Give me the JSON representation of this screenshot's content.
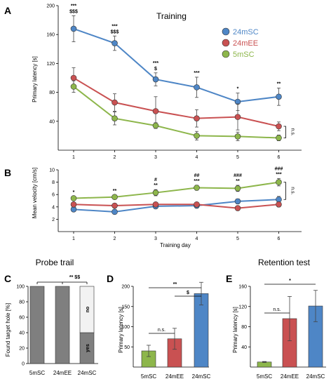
{
  "chart_data": [
    {
      "id": "A",
      "type": "line",
      "panel_label": "A",
      "title": "Training",
      "xlabel": "",
      "ylabel": "Primary latency [s]",
      "x": [
        1,
        2,
        3,
        4,
        5,
        6
      ],
      "x_ticks": [
        "1",
        "2",
        "3",
        "4",
        "5",
        "6"
      ],
      "ylim": [
        0,
        200
      ],
      "y_ticks": [
        "40",
        "80",
        "120",
        "160",
        "200"
      ],
      "series": [
        {
          "name": "24mSC",
          "color": "#4e86c6",
          "values": [
            168,
            148,
            98,
            87,
            67,
            74
          ],
          "err": [
            18,
            10,
            9,
            14,
            12,
            12
          ]
        },
        {
          "name": "24mEE",
          "color": "#c95152",
          "values": [
            100,
            66,
            54,
            44,
            46,
            33
          ],
          "err": [
            14,
            12,
            20,
            12,
            18,
            6
          ]
        },
        {
          "name": "5mSC",
          "color": "#8db64b",
          "values": [
            88,
            44,
            34,
            20,
            19,
            17
          ],
          "err": [
            8,
            9,
            4,
            6,
            6,
            4
          ]
        }
      ],
      "annotations": [
        {
          "x": 1,
          "lines": [
            "***",
            "$$$"
          ]
        },
        {
          "x": 2,
          "lines": [
            "***",
            "$$$"
          ]
        },
        {
          "x": 3,
          "lines": [
            "***",
            "$"
          ]
        },
        {
          "x": 4,
          "lines": [
            "***"
          ]
        },
        {
          "x": 5,
          "lines": [
            "*"
          ]
        },
        {
          "x": 6,
          "lines": [
            "**"
          ]
        }
      ],
      "bracket_label": "n.s.",
      "legend_position": "top-right"
    },
    {
      "id": "B",
      "type": "line",
      "panel_label": "B",
      "title": "",
      "xlabel": "Training day",
      "ylabel": "Mean velocity [cm/s]",
      "x": [
        1,
        2,
        3,
        4,
        5,
        6
      ],
      "x_ticks": [
        "1",
        "2",
        "3",
        "4",
        "5",
        "6"
      ],
      "ylim": [
        0,
        10
      ],
      "y_ticks": [
        "2",
        "4",
        "6",
        "8",
        "10"
      ],
      "series": [
        {
          "name": "24mSC",
          "color": "#4e86c6",
          "values": [
            3.6,
            3.2,
            4.1,
            4.2,
            4.9,
            5.2
          ],
          "err": [
            0.3,
            0.3,
            0.3,
            0.3,
            0.4,
            0.5
          ]
        },
        {
          "name": "24mEE",
          "color": "#c95152",
          "values": [
            4.4,
            4.2,
            4.4,
            4.4,
            3.8,
            4.4
          ],
          "err": [
            0.3,
            0.3,
            0.3,
            0.3,
            0.3,
            0.4
          ]
        },
        {
          "name": "5mSC",
          "color": "#8db64b",
          "values": [
            5.4,
            5.6,
            6.3,
            7.1,
            7.0,
            8.0
          ],
          "err": [
            0.3,
            0.3,
            0.5,
            0.4,
            0.5,
            0.6
          ]
        }
      ],
      "annotations": [
        {
          "x": 1,
          "lines": [
            "*"
          ]
        },
        {
          "x": 2,
          "lines": [
            "**"
          ]
        },
        {
          "x": 3,
          "lines": [
            "#",
            "**"
          ]
        },
        {
          "x": 4,
          "lines": [
            "##",
            "***"
          ]
        },
        {
          "x": 5,
          "lines": [
            "###",
            "**"
          ]
        },
        {
          "x": 6,
          "lines": [
            "###",
            "***"
          ]
        }
      ],
      "bracket_label": "n.s."
    },
    {
      "id": "C",
      "type": "bar",
      "panel_label": "C",
      "title": "Probe trail",
      "ylabel": "Found target hole [%]",
      "categories": [
        "5mSC",
        "24mEE",
        "24mSC"
      ],
      "category_colors": [
        "#8db64b",
        "#c95152",
        "#4e86c6"
      ],
      "ylim": [
        0,
        100
      ],
      "y_ticks": [
        "0",
        "20",
        "40",
        "60",
        "80",
        "100"
      ],
      "series": [
        {
          "name": "yes",
          "color": "#7f7f7f",
          "values": [
            100,
            100,
            40
          ]
        },
        {
          "name": "no",
          "color": "#f2f2f2",
          "values": [
            0,
            0,
            60
          ]
        }
      ],
      "significance": "** $$"
    },
    {
      "id": "D",
      "type": "bar",
      "panel_label": "D",
      "title": "",
      "ylabel": "Primary latency [s]",
      "categories": [
        "5mSC",
        "24mEE",
        "24mSC"
      ],
      "colors": [
        "#8db64b",
        "#c95152",
        "#4e86c6"
      ],
      "values": [
        40,
        70,
        182
      ],
      "err": [
        14,
        26,
        28
      ],
      "ylim": [
        0,
        200
      ],
      "y_ticks": [
        "50",
        "100",
        "150",
        "200"
      ],
      "brackets": [
        {
          "from": 0,
          "to": 2,
          "label": "**"
        },
        {
          "from": 1,
          "to": 2,
          "label": "$"
        },
        {
          "from": 0,
          "to": 1,
          "label": "n.s."
        }
      ]
    },
    {
      "id": "E",
      "type": "bar",
      "panel_label": "E",
      "title": "Retention test",
      "ylabel": "Primary latency [s]",
      "categories": [
        "5mSC",
        "24mEE",
        "24mSC"
      ],
      "colors": [
        "#8db64b",
        "#c95152",
        "#4e86c6"
      ],
      "values": [
        10,
        96,
        121
      ],
      "err": [
        1,
        44,
        31
      ],
      "ylim": [
        0,
        160
      ],
      "y_ticks": [
        "40",
        "80",
        "120",
        "160"
      ],
      "brackets": [
        {
          "from": 0,
          "to": 2,
          "label": "*"
        },
        {
          "from": 0,
          "to": 1,
          "label": "n.s."
        }
      ]
    }
  ]
}
